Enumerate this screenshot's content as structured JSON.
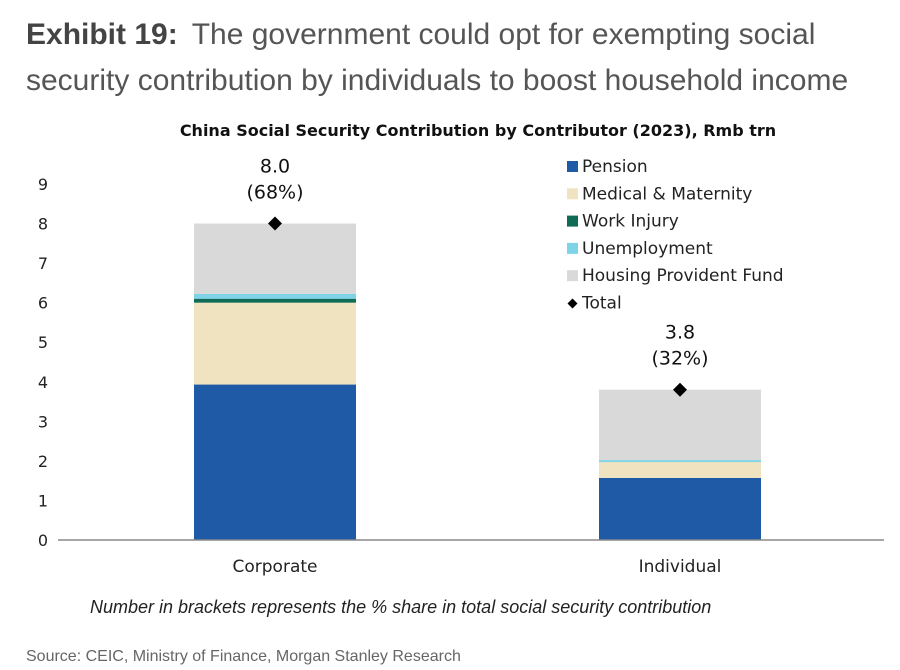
{
  "exhibit": {
    "label": "Exhibit 19:",
    "title": "The government could opt for exempting social security contribution by individuals to boost household income"
  },
  "chart_data": {
    "type": "bar",
    "stacked": true,
    "title": "China Social Security Contribution by Contributor (2023), Rmb trn",
    "categories": [
      "Corporate",
      "Individual"
    ],
    "series": [
      {
        "name": "Pension",
        "values": [
          3.93,
          1.57
        ],
        "color": "#1E5AA6"
      },
      {
        "name": "Medical & Maternity",
        "values": [
          2.07,
          0.4
        ],
        "color": "#EFE4BF"
      },
      {
        "name": "Work Injury",
        "values": [
          0.1,
          0.0
        ],
        "color": "#0F6B55"
      },
      {
        "name": "Unemployment",
        "values": [
          0.12,
          0.05
        ],
        "color": "#7FD3E8"
      },
      {
        "name": "Housing Provident Fund",
        "values": [
          1.78,
          1.78
        ],
        "color": "#D9D9D9"
      }
    ],
    "total": {
      "name": "Total",
      "values": [
        8.0,
        3.8
      ],
      "value_labels": [
        "8.0",
        "3.8"
      ],
      "share_labels": [
        "(68%)",
        "(32%)"
      ]
    },
    "yticks": [
      "0",
      "1",
      "2",
      "3",
      "4",
      "5",
      "6",
      "7",
      "8",
      "9"
    ],
    "ylim": [
      0,
      9
    ],
    "grid": false,
    "legend_position": "top-right"
  },
  "footnote": "Number in brackets represents the % share in total social security contribution",
  "source": "Source: CEIC, Ministry of Finance, Morgan Stanley Research"
}
